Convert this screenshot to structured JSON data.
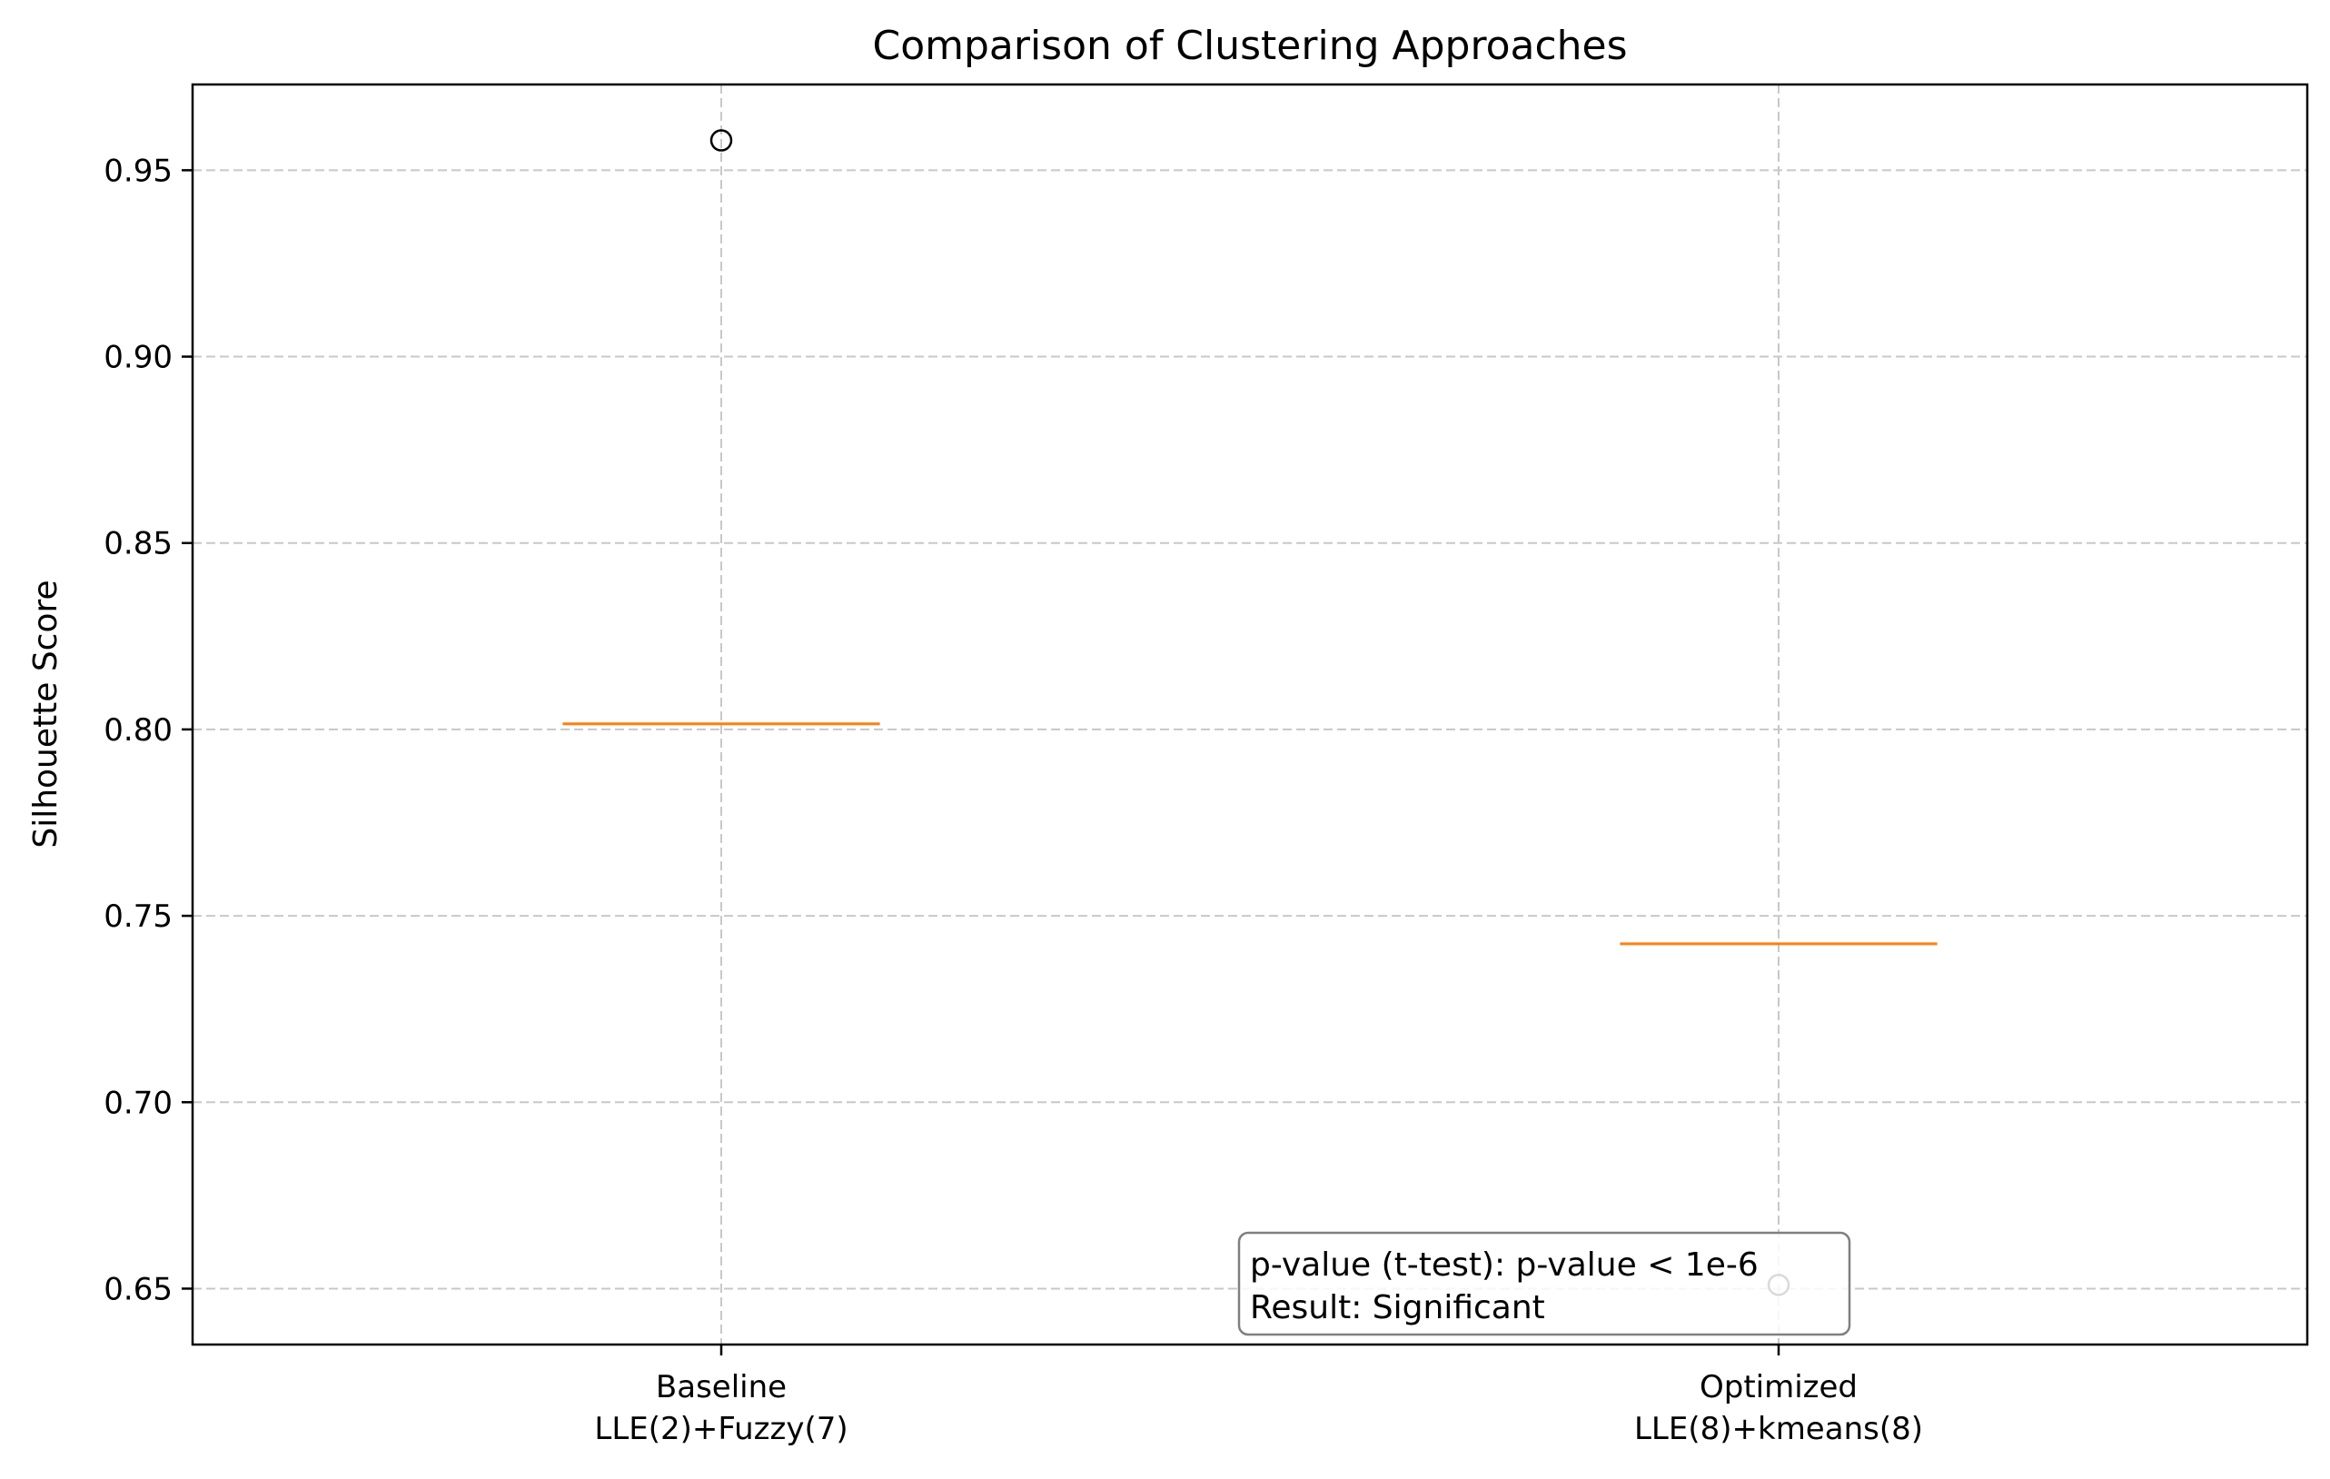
{
  "chart_data": {
    "type": "box",
    "title": "Comparison of Clustering Approaches",
    "xlabel": "",
    "ylabel": "Silhouette Score",
    "ylim": [
      0.635,
      0.973
    ],
    "yticks": [
      0.65,
      0.7,
      0.75,
      0.8,
      0.85,
      0.9,
      0.95
    ],
    "grid": true,
    "categories": [
      {
        "line1": "Baseline",
        "line2": "LLE(2)+Fuzzy(7)"
      },
      {
        "line1": "Optimized",
        "line2": "LLE(8)+kmeans(8)"
      }
    ],
    "series": [
      {
        "median": 0.8015,
        "q1": 0.8015,
        "q3": 0.8015,
        "whisker_low": 0.8015,
        "whisker_high": 0.8015,
        "outliers": [
          0.958
        ]
      },
      {
        "median": 0.7425,
        "q1": 0.7425,
        "q3": 0.7425,
        "whisker_low": 0.7425,
        "whisker_high": 0.7425,
        "outliers": [
          0.651
        ]
      }
    ],
    "annotation": {
      "line1": "p-value (t-test): p-value < 1e-6",
      "line2": "Result: Significant"
    },
    "colors": {
      "median": "#ff7f0e",
      "grid": "#c8c8c8",
      "axis": "#000000"
    }
  }
}
